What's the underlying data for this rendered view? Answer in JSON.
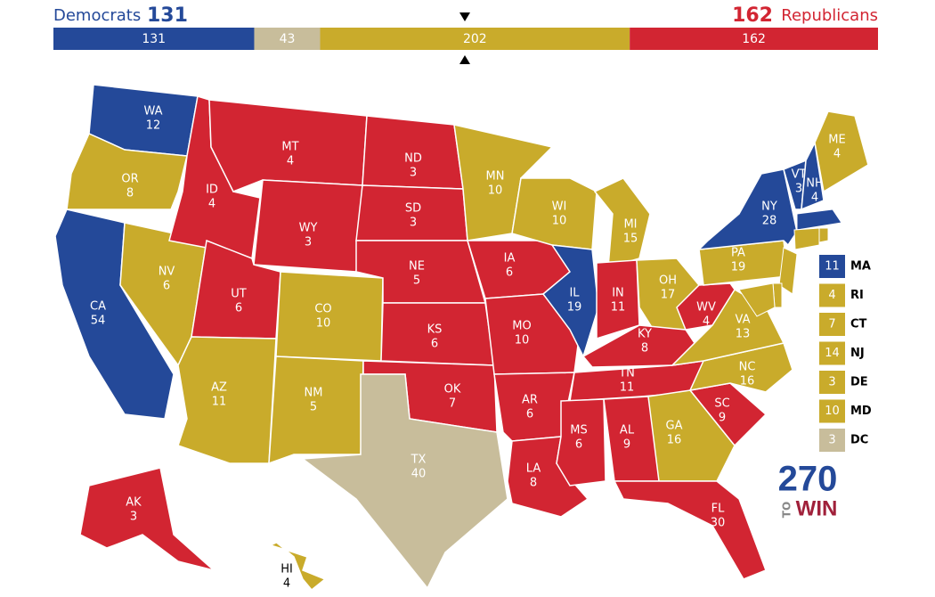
{
  "header": {
    "left_label": "Democrats",
    "right_label": "Republicans"
  },
  "bar": {
    "segments": [
      {
        "value": 131,
        "color": "#244999"
      },
      {
        "value": 43,
        "color": "#c8bd9b"
      },
      {
        "value": 202,
        "color": "#c9ab2b"
      },
      {
        "value": 162,
        "color": "#d22532"
      }
    ]
  },
  "states": [
    {
      "abbr": "WA",
      "votes": 12,
      "color": "#244999"
    },
    {
      "abbr": "OR",
      "votes": 8,
      "color": "#c9ab2b"
    },
    {
      "abbr": "CA",
      "votes": 54,
      "color": "#244999"
    },
    {
      "abbr": "NV",
      "votes": 6,
      "color": "#c9ab2b"
    },
    {
      "abbr": "ID",
      "votes": 4,
      "color": "#d22532"
    },
    {
      "abbr": "MT",
      "votes": 4,
      "color": "#d22532"
    },
    {
      "abbr": "WY",
      "votes": 3,
      "color": "#d22532"
    },
    {
      "abbr": "UT",
      "votes": 6,
      "color": "#d22532"
    },
    {
      "abbr": "AZ",
      "votes": 11,
      "color": "#c9ab2b"
    },
    {
      "abbr": "CO",
      "votes": 10,
      "color": "#c9ab2b"
    },
    {
      "abbr": "NM",
      "votes": 5,
      "color": "#c9ab2b"
    },
    {
      "abbr": "ND",
      "votes": 3,
      "color": "#d22532"
    },
    {
      "abbr": "SD",
      "votes": 3,
      "color": "#d22532"
    },
    {
      "abbr": "NE",
      "votes": 5,
      "color": "#d22532"
    },
    {
      "abbr": "KS",
      "votes": 6,
      "color": "#d22532"
    },
    {
      "abbr": "OK",
      "votes": 7,
      "color": "#d22532"
    },
    {
      "abbr": "TX",
      "votes": 40,
      "color": "#c8bd9b"
    },
    {
      "abbr": "MN",
      "votes": 10,
      "color": "#c9ab2b"
    },
    {
      "abbr": "IA",
      "votes": 6,
      "color": "#d22532"
    },
    {
      "abbr": "MO",
      "votes": 10,
      "color": "#d22532"
    },
    {
      "abbr": "AR",
      "votes": 6,
      "color": "#d22532"
    },
    {
      "abbr": "LA",
      "votes": 8,
      "color": "#d22532"
    },
    {
      "abbr": "WI",
      "votes": 10,
      "color": "#c9ab2b"
    },
    {
      "abbr": "IL",
      "votes": 19,
      "color": "#244999"
    },
    {
      "abbr": "MI",
      "votes": 15,
      "color": "#c9ab2b"
    },
    {
      "abbr": "IN",
      "votes": 11,
      "color": "#d22532"
    },
    {
      "abbr": "OH",
      "votes": 17,
      "color": "#c9ab2b"
    },
    {
      "abbr": "KY",
      "votes": 8,
      "color": "#d22532"
    },
    {
      "abbr": "TN",
      "votes": 11,
      "color": "#d22532"
    },
    {
      "abbr": "MS",
      "votes": 6,
      "color": "#d22532"
    },
    {
      "abbr": "AL",
      "votes": 9,
      "color": "#d22532"
    },
    {
      "abbr": "GA",
      "votes": 16,
      "color": "#c9ab2b"
    },
    {
      "abbr": "FL",
      "votes": 30,
      "color": "#d22532"
    },
    {
      "abbr": "SC",
      "votes": 9,
      "color": "#d22532"
    },
    {
      "abbr": "NC",
      "votes": 16,
      "color": "#c9ab2b"
    },
    {
      "abbr": "VA",
      "votes": 13,
      "color": "#c9ab2b"
    },
    {
      "abbr": "WV",
      "votes": 4,
      "color": "#d22532"
    },
    {
      "abbr": "PA",
      "votes": 19,
      "color": "#c9ab2b"
    },
    {
      "abbr": "NY",
      "votes": 28,
      "color": "#244999"
    },
    {
      "abbr": "VT",
      "votes": 3,
      "color": "#244999"
    },
    {
      "abbr": "NH",
      "votes": 4,
      "color": "#244999"
    },
    {
      "abbr": "ME",
      "votes": 4,
      "color": "#c9ab2b"
    },
    {
      "abbr": "AK",
      "votes": 3,
      "color": "#d22532"
    },
    {
      "abbr": "HI",
      "votes": 4,
      "color": "#c9ab2b"
    }
  ],
  "small_states": [
    {
      "abbr": "MA",
      "votes": 11,
      "color": "#244999"
    },
    {
      "abbr": "RI",
      "votes": 4,
      "color": "#c9ab2b"
    },
    {
      "abbr": "CT",
      "votes": 7,
      "color": "#c9ab2b"
    },
    {
      "abbr": "NJ",
      "votes": 14,
      "color": "#c9ab2b"
    },
    {
      "abbr": "DE",
      "votes": 3,
      "color": "#c9ab2b"
    },
    {
      "abbr": "MD",
      "votes": 10,
      "color": "#c9ab2b"
    },
    {
      "abbr": "DC",
      "votes": 3,
      "color": "#c8bd9b"
    }
  ],
  "logo": {
    "number": "270",
    "to": "TO",
    "win": "WIN"
  }
}
